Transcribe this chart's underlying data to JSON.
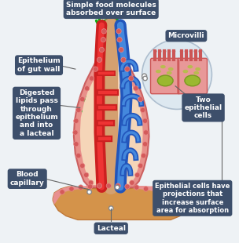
{
  "bg_color": "#eef2f5",
  "label_box_color": "#3d4f6b",
  "label_text_color": "#ffffff",
  "villi_outer_color": "#e8908a",
  "villi_inner_color": "#f5d5b8",
  "dot_color": "#d45a5a",
  "dot_edge": "#e88888",
  "blood_red_dark": "#cc2020",
  "blood_red_light": "#ee3333",
  "lymph_blue_dark": "#2255bb",
  "lymph_blue_light": "#4488dd",
  "lacteal_color": "#d4a070",
  "base_orange": "#d4934a",
  "base_pink": "#e89090",
  "green_arrow": "#11aa11",
  "mv_circle_fill": "#dce8f0",
  "mv_circle_edge": "#aabbcc",
  "mv_cell_color": "#e89898",
  "mv_cell_edge": "#cc5555",
  "mv_nucleus_color": "#9ab830",
  "mv_nucleus_edge": "#7a9820",
  "mv_organelle": "#aac838",
  "mv_villus_color": "#cc5555",
  "connector_color": "#666666",
  "labels": {
    "top": "Simple food molecules\nabsorbed over surface",
    "epithelium": "Epithelium\nof gut wall",
    "lipids": "Digested\nlipids pass\nthrough\nepithelium\nand into\na lacteal",
    "blood": "Blood\ncapillary",
    "lacteal": "Lacteal",
    "microvilli": "Microvilli",
    "two_cells": "Two\nepithelial\ncells",
    "bottom_right": "Epithelial cells have\nprojections that\nincrease surface\narea for absorption"
  }
}
